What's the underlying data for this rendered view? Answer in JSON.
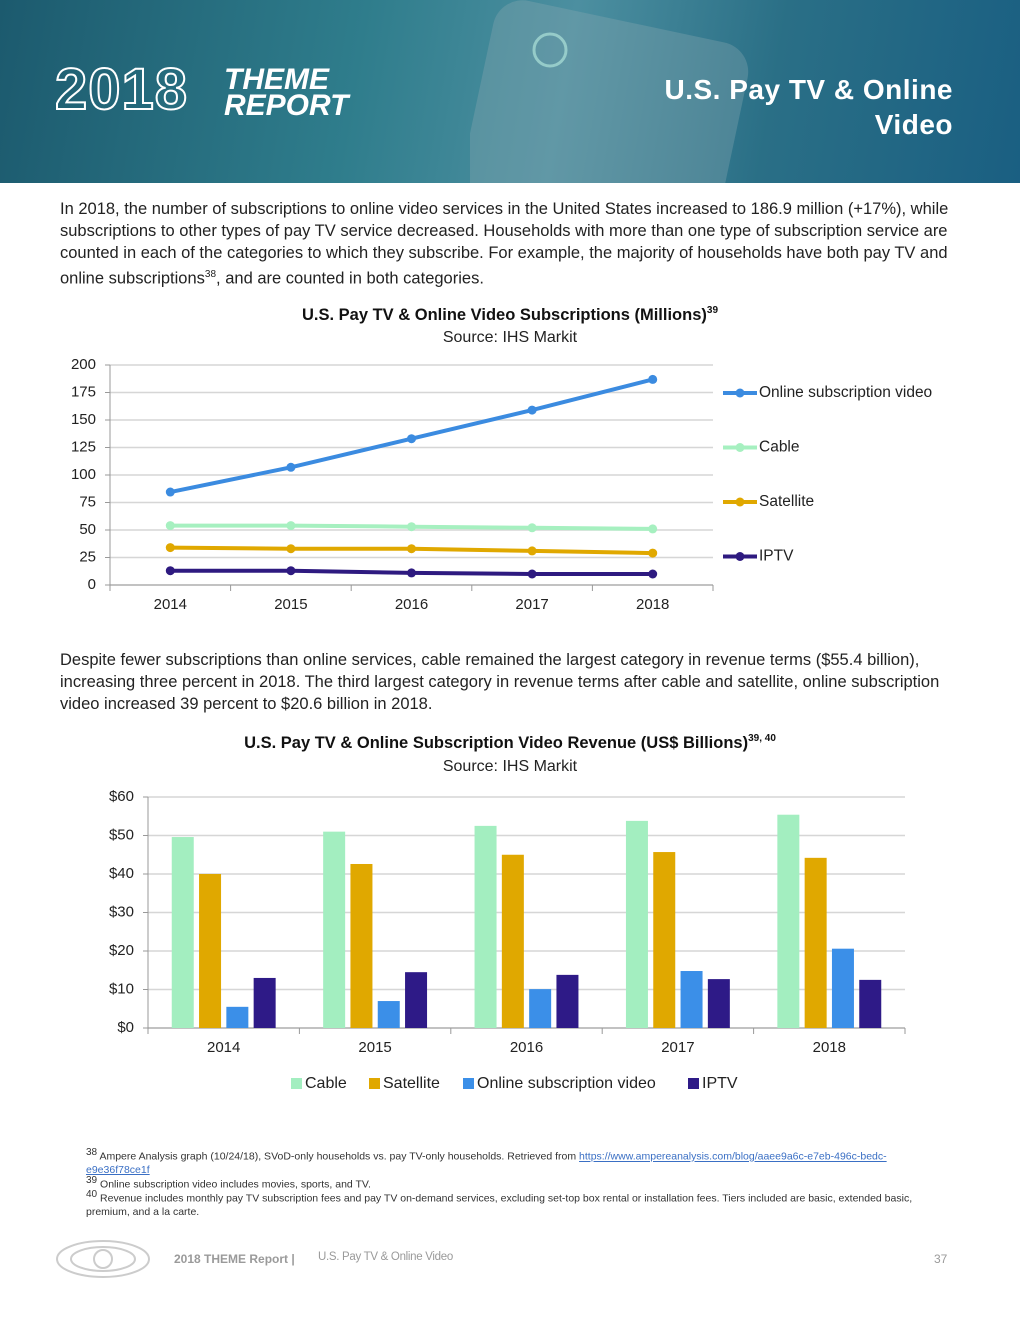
{
  "header": {
    "logo_year": "2018",
    "logo_word1": "THEME",
    "logo_word2": "REPORT",
    "title": "U.S. Pay TV & Online Video"
  },
  "paragraph1": {
    "text_before": "In 2018, the number of subscriptions to online video services in the United States increased to 186.9 million (+17%), while subscriptions to other types of pay TV service decreased. Households with more than one type of subscription service are counted in each of the categories to which they subscribe. For example, the majority of households have both pay TV and online subscriptions",
    "ref": "38",
    "text_after": ", and are counted in both categories."
  },
  "paragraph2": "Despite fewer subscriptions than online services, cable remained the largest category in revenue terms ($55.4 billion), increasing three percent in 2018. The third largest category in revenue terms after cable and satellite, online subscription video increased 39 percent to $20.6 billion in 2018.",
  "chart_data": [
    {
      "type": "line",
      "title": "U.S. Pay TV & Online Video Subscriptions (Millions)",
      "title_ref": "39",
      "subtitle": "Source: IHS Markit",
      "categories": [
        "2014",
        "2015",
        "2016",
        "2017",
        "2018"
      ],
      "series": [
        {
          "name": "Online subscription video",
          "color": "#3b8be0",
          "values": [
            84.5,
            107,
            133,
            159,
            186.9
          ]
        },
        {
          "name": "Cable",
          "color": "#a6f0c0",
          "values": [
            54,
            54,
            53,
            52,
            51
          ]
        },
        {
          "name": "Satellite",
          "color": "#e0a800",
          "values": [
            34,
            33,
            33,
            31,
            29
          ]
        },
        {
          "name": "IPTV",
          "color": "#2e1a80",
          "values": [
            13,
            13,
            11,
            10,
            10
          ]
        }
      ],
      "ylim": [
        0,
        200
      ],
      "yticks": [
        0,
        25,
        50,
        75,
        100,
        125,
        150,
        175,
        200
      ],
      "grid": true,
      "legend": "right"
    },
    {
      "type": "bar",
      "title": "U.S. Pay TV & Online Subscription Video Revenue (US$ Billions)",
      "title_ref": "39, 40",
      "subtitle": "Source: IHS Markit",
      "categories": [
        "2014",
        "2015",
        "2016",
        "2017",
        "2018"
      ],
      "series": [
        {
          "name": "Cable",
          "color": "#a3eec0",
          "values": [
            49.6,
            51,
            52.5,
            53.8,
            55.4
          ]
        },
        {
          "name": "Satellite",
          "color": "#e0a800",
          "values": [
            40,
            42.6,
            45,
            45.7,
            44.2
          ]
        },
        {
          "name": "Online subscription video",
          "color": "#3b8fe8",
          "values": [
            5.5,
            7,
            10.1,
            14.8,
            20.6
          ]
        },
        {
          "name": "IPTV",
          "color": "#2e1a87",
          "values": [
            13,
            14.5,
            13.8,
            12.7,
            12.5
          ]
        }
      ],
      "ylim": [
        0,
        60
      ],
      "yticks": [
        {
          "value": 0,
          "label": "$0"
        },
        {
          "value": 10,
          "label": "$10"
        },
        {
          "value": 20,
          "label": "$20"
        },
        {
          "value": 30,
          "label": "$30"
        },
        {
          "value": 40,
          "label": "$40"
        },
        {
          "value": 50,
          "label": "$50"
        },
        {
          "value": 60,
          "label": "$60"
        }
      ],
      "grid": true,
      "legend": "bottom"
    }
  ],
  "footnotes": [
    {
      "ref": "38",
      "text": "Ampere Analysis graph (10/24/18), SVoD-only households vs. pay TV-only households. Retrieved from ",
      "link": "https://www.ampereanalysis.com/blog/aaee9a6c-e7eb-496c-bedc-e9e36f78ce1f"
    },
    {
      "ref": "39",
      "text": "Online subscription video includes movies, sports, and TV."
    },
    {
      "ref": "40",
      "text": "Revenue includes monthly pay TV subscription fees and pay TV on-demand services, excluding set-top box rental or installation fees. Tiers included are basic, extended basic, premium, and a la carte."
    }
  ],
  "footer": {
    "brand": "2018 THEME Report |",
    "section": "U.S. Pay TV & Online Video",
    "page": "37"
  }
}
